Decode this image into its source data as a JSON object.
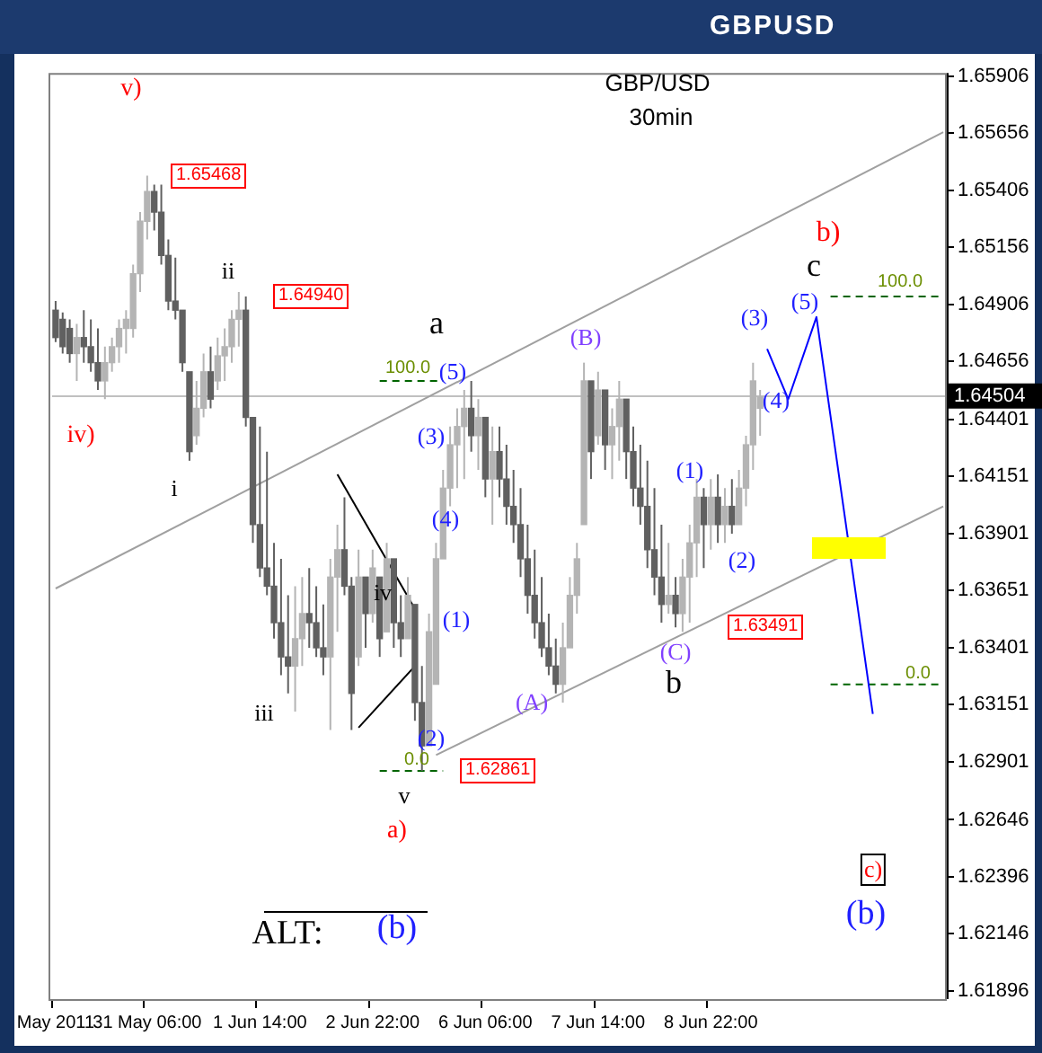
{
  "chart_data": {
    "type": "candlestick",
    "title": "GBPUSD",
    "subtitle": "GBP/USD",
    "colors": [
      "#606060",
      "#606060",
      "#606060",
      "#b4b4b4",
      "#606060",
      "#606060",
      "#606060",
      "#b4b4b4",
      "#b4b4b4",
      "#b4b4b4",
      "#b4b4b4",
      "#b4b4b4",
      "#b4b4b4",
      "#b4b4b4",
      "#606060",
      "#606060",
      "#606060",
      "#606060",
      "#606060",
      "#606060",
      "#b4b4b4",
      "#b4b4b4",
      "#606060",
      "#b4b4b4",
      "#b4b4b4",
      "#b4b4b4",
      "#b4b4b4",
      "#606060",
      "#606060",
      "#606060",
      "#606060",
      "#606060",
      "#606060",
      "#606060",
      "#b4b4b4",
      "#b4b4b4",
      "#606060",
      "#606060",
      "#606060",
      "#b4b4b4",
      "#b4b4b4",
      "#606060",
      "#606060",
      "#b4b4b4",
      "#606060",
      "#b4b4b4",
      "#606060",
      "#b4b4b4",
      "#606060",
      "#606060",
      "#b4b4b4",
      "#606060",
      "#606060",
      "#b4b4b4",
      "#b4b4b4",
      "#b4b4b4",
      "#b4b4b4",
      "#b4b4b4",
      "#b4b4b4",
      "#606060",
      "#b4b4b4",
      "#606060",
      "#b4b4b4",
      "#606060",
      "#606060",
      "#606060",
      "#606060",
      "#606060",
      "#606060",
      "#606060",
      "#606060",
      "#606060",
      "#b4b4b4",
      "#b4b4b4",
      "#b4b4b4",
      "#b4b4b4",
      "#606060",
      "#b4b4b4",
      "#606060",
      "#b4b4b4",
      "#b4b4b4",
      "#606060",
      "#606060",
      "#606060",
      "#606060",
      "#606060",
      "#606060",
      "#b4b4b4",
      "#606060",
      "#b4b4b4",
      "#b4b4b4",
      "#b4b4b4",
      "#606060",
      "#b4b4b4",
      "#606060",
      "#b4b4b4",
      "#606060",
      "#b4b4b4",
      "#b4b4b4",
      "#b4b4b4",
      "#b4b4b4",
      null,
      null,
      null,
      null,
      null,
      null,
      null,
      null,
      null,
      null,
      null,
      null,
      null,
      null,
      null,
      null,
      null,
      null,
      null,
      null,
      null,
      null,
      null,
      null,
      null,
      null
    ],
    "categories": [
      "May 2011",
      null,
      null,
      null,
      null,
      null,
      null,
      null,
      null,
      null,
      null,
      null,
      null,
      "31 May 06:00",
      null,
      null,
      null,
      null,
      null,
      null,
      null,
      null,
      null,
      null,
      null,
      null,
      null,
      null,
      null,
      "1 Jun 14:00",
      null,
      null,
      null,
      null,
      null,
      null,
      null,
      null,
      null,
      null,
      null,
      null,
      null,
      null,
      null,
      "2 Jun 22:00",
      null,
      null,
      null,
      null,
      null,
      null,
      null,
      null,
      null,
      null,
      null,
      null,
      null,
      null,
      null,
      "6 Jun 06:00",
      null,
      null,
      null,
      null,
      null,
      null,
      null,
      null,
      null,
      null,
      null,
      null,
      null,
      null,
      null,
      "7 Jun 14:00",
      null,
      null,
      null,
      null,
      null,
      null,
      null,
      null,
      null,
      null,
      null,
      null,
      null,
      null,
      null,
      "8 Jun 22:00",
      null,
      null,
      null,
      null,
      null,
      null,
      null,
      null,
      null,
      null,
      null,
      null,
      null,
      null,
      null,
      null,
      null,
      null,
      null,
      null,
      null,
      null,
      null,
      null,
      null,
      null,
      null,
      null,
      null,
      null,
      null,
      null,
      null
    ],
    "ohlc": [
      [
        1.6488,
        1.6492,
        1.6474,
        1.6476
      ],
      [
        1.6484,
        1.6487,
        1.6469,
        1.6472
      ],
      [
        1.648,
        1.6484,
        1.6465,
        1.6469
      ],
      [
        1.6469,
        1.6482,
        1.6457,
        1.6476
      ],
      [
        1.6476,
        1.6488,
        1.6465,
        1.6472
      ],
      [
        1.6472,
        1.6484,
        1.6461,
        1.6465
      ],
      [
        1.6465,
        1.648,
        1.6453,
        1.6457
      ],
      [
        1.6457,
        1.6472,
        1.6449,
        1.6465
      ],
      [
        1.6465,
        1.6476,
        1.6461,
        1.6472
      ],
      [
        1.6472,
        1.6484,
        1.6465,
        1.648
      ],
      [
        1.648,
        1.6488,
        1.6469,
        1.6484
      ],
      [
        1.648,
        1.6508,
        1.6476,
        1.6504
      ],
      [
        1.6504,
        1.6531,
        1.6496,
        1.6527
      ],
      [
        1.6527,
        1.6547,
        1.6519,
        1.654
      ],
      [
        1.654,
        1.6543,
        1.6523,
        1.6531
      ],
      [
        1.6531,
        1.6543,
        1.6508,
        1.6512
      ],
      [
        1.6512,
        1.6519,
        1.6488,
        1.6492
      ],
      [
        1.6492,
        1.6511,
        1.6484,
        1.6488
      ],
      [
        1.6488,
        1.6488,
        1.6461,
        1.6465
      ],
      [
        1.6461,
        1.6461,
        1.6422,
        1.6426
      ],
      [
        1.6433,
        1.6457,
        1.6429,
        1.6445
      ],
      [
        1.6445,
        1.6469,
        1.6441,
        1.6461
      ],
      [
        1.6461,
        1.6472,
        1.6445,
        1.6449
      ],
      [
        1.6457,
        1.6476,
        1.6453,
        1.6468
      ],
      [
        1.6468,
        1.648,
        1.6457,
        1.6472
      ],
      [
        1.6472,
        1.6488,
        1.6465,
        1.6484
      ],
      [
        1.6484,
        1.6496,
        1.6472,
        1.6488
      ],
      [
        1.6488,
        1.6494,
        1.6437,
        1.6441
      ],
      [
        1.6441,
        1.6441,
        1.6386,
        1.6394
      ],
      [
        1.6394,
        1.6437,
        1.6371,
        1.6375
      ],
      [
        1.6375,
        1.6426,
        1.6363,
        1.6367
      ],
      [
        1.6367,
        1.6386,
        1.6344,
        1.6351
      ],
      [
        1.6351,
        1.6379,
        1.6328,
        1.6336
      ],
      [
        1.6336,
        1.6363,
        1.632,
        1.6332
      ],
      [
        1.6332,
        1.6367,
        1.6312,
        1.6344
      ],
      [
        1.6344,
        1.6371,
        1.6332,
        1.6355
      ],
      [
        1.6355,
        1.6375,
        1.634,
        1.6351
      ],
      [
        1.6351,
        1.6367,
        1.6336,
        1.634
      ],
      [
        1.634,
        1.6359,
        1.6328,
        1.6336
      ],
      [
        1.6336,
        1.6379,
        1.6304,
        1.6371
      ],
      [
        1.6371,
        1.6394,
        1.6347,
        1.6383
      ],
      [
        1.6383,
        1.6406,
        1.6363,
        1.6367
      ],
      [
        1.6367,
        1.6371,
        1.6304,
        1.632
      ],
      [
        1.6336,
        1.6383,
        1.6332,
        1.6371
      ],
      [
        1.6371,
        1.6371,
        1.634,
        1.6355
      ],
      [
        1.6355,
        1.6383,
        1.6351,
        1.6375
      ],
      [
        1.6371,
        1.6371,
        1.6336,
        1.6344
      ],
      [
        1.6347,
        1.6386,
        1.6347,
        1.6379
      ],
      [
        1.6379,
        1.6379,
        1.634,
        1.6351
      ],
      [
        1.6351,
        1.6363,
        1.6336,
        1.6344
      ],
      [
        1.6344,
        1.6371,
        1.6344,
        1.6363
      ],
      [
        1.6359,
        1.6359,
        1.6308,
        1.6316
      ],
      [
        1.6316,
        1.6332,
        1.6286,
        1.6297
      ],
      [
        1.6297,
        1.6355,
        1.6297,
        1.6347
      ],
      [
        1.6324,
        1.6386,
        1.6324,
        1.6379
      ],
      [
        1.6379,
        1.6418,
        1.6379,
        1.641
      ],
      [
        1.641,
        1.6437,
        1.6402,
        1.6429
      ],
      [
        1.6429,
        1.6445,
        1.641,
        1.6437
      ],
      [
        1.6437,
        1.6453,
        1.6414,
        1.6445
      ],
      [
        1.6445,
        1.6457,
        1.6426,
        1.6433
      ],
      [
        1.6433,
        1.6449,
        1.6418,
        1.6441
      ],
      [
        1.6441,
        1.6441,
        1.6406,
        1.6414
      ],
      [
        1.6414,
        1.6437,
        1.6394,
        1.6426
      ],
      [
        1.6426,
        1.6437,
        1.6406,
        1.6414
      ],
      [
        1.6414,
        1.6429,
        1.6394,
        1.6402
      ],
      [
        1.6402,
        1.6418,
        1.6386,
        1.6394
      ],
      [
        1.6394,
        1.641,
        1.6371,
        1.6379
      ],
      [
        1.6379,
        1.6394,
        1.6355,
        1.6363
      ],
      [
        1.6363,
        1.6383,
        1.6344,
        1.6351
      ],
      [
        1.6351,
        1.6371,
        1.6336,
        1.634
      ],
      [
        1.634,
        1.6355,
        1.6328,
        1.6332
      ],
      [
        1.6332,
        1.6344,
        1.632,
        1.6324
      ],
      [
        1.6324,
        1.6351,
        1.6316,
        1.634
      ],
      [
        1.634,
        1.6371,
        1.634,
        1.6363
      ],
      [
        1.6363,
        1.6386,
        1.6355,
        1.6379
      ],
      [
        1.6394,
        1.6465,
        1.6394,
        1.6457
      ],
      [
        1.6457,
        1.6457,
        1.6414,
        1.6426
      ],
      [
        1.6433,
        1.6461,
        1.6429,
        1.6453
      ],
      [
        1.6453,
        1.6453,
        1.6418,
        1.6429
      ],
      [
        1.6429,
        1.6445,
        1.6414,
        1.6437
      ],
      [
        1.6437,
        1.6457,
        1.6422,
        1.6449
      ],
      [
        1.6449,
        1.6449,
        1.6414,
        1.6426
      ],
      [
        1.6426,
        1.6437,
        1.6402,
        1.641
      ],
      [
        1.641,
        1.6429,
        1.6394,
        1.6402
      ],
      [
        1.6402,
        1.6422,
        1.6375,
        1.6383
      ],
      [
        1.6383,
        1.641,
        1.6363,
        1.6371
      ],
      [
        1.6371,
        1.6394,
        1.6351,
        1.6359
      ],
      [
        1.6359,
        1.6386,
        1.6355,
        1.6363
      ],
      [
        1.6363,
        1.6371,
        1.6349,
        1.6355
      ],
      [
        1.6355,
        1.6379,
        1.6347,
        1.6371
      ],
      [
        1.6371,
        1.6394,
        1.6351,
        1.6386
      ],
      [
        1.6386,
        1.6414,
        1.6371,
        1.6406
      ],
      [
        1.6406,
        1.641,
        1.6375,
        1.6394
      ],
      [
        1.6394,
        1.6414,
        1.6383,
        1.6406
      ],
      [
        1.6406,
        1.6416,
        1.6386,
        1.6394
      ],
      [
        1.6394,
        1.641,
        1.6386,
        1.6402
      ],
      [
        1.6402,
        1.6414,
        1.639,
        1.6394
      ],
      [
        1.6394,
        1.6418,
        1.6394,
        1.641
      ],
      [
        1.641,
        1.6433,
        1.6402,
        1.6429
      ],
      [
        1.6429,
        1.6465,
        1.6418,
        1.6457
      ],
      [
        1.6445,
        1.6453,
        1.6433,
        1.645
      ],
      null,
      null,
      null,
      null,
      null,
      null,
      null,
      null,
      null,
      null,
      null,
      null,
      null,
      null,
      null,
      null,
      null,
      null,
      null,
      null,
      null,
      null,
      null,
      null,
      null,
      null
    ],
    "series": [
      {
        "type": "line",
        "color": "#a0a0a0",
        "values": [
          1.6366,
          null,
          null,
          null,
          null,
          null,
          null,
          null,
          null,
          null,
          null,
          null,
          null,
          null,
          null,
          null,
          null,
          null,
          null,
          null,
          null,
          null,
          null,
          null,
          null,
          null,
          null,
          null,
          null,
          null,
          null,
          null,
          null,
          null,
          null,
          null,
          null,
          null,
          null,
          null,
          null,
          null,
          null,
          null,
          null,
          null,
          null,
          null,
          null,
          null,
          null,
          null,
          null,
          null,
          null,
          null,
          null,
          null,
          null,
          null,
          null,
          null,
          null,
          null,
          null,
          null,
          null,
          null,
          null,
          null,
          null,
          null,
          null,
          null,
          null,
          null,
          null,
          null,
          null,
          null,
          null,
          null,
          null,
          null,
          null,
          null,
          null,
          null,
          null,
          null,
          null,
          null,
          null,
          null,
          null,
          null,
          null,
          null,
          null,
          null,
          null,
          null,
          null,
          null,
          null,
          null,
          null,
          null,
          null,
          null,
          null,
          null,
          null,
          null,
          null,
          null,
          null,
          null,
          null,
          null,
          null,
          null,
          null,
          null,
          null,
          null,
          1.6566
        ]
      },
      {
        "type": "line",
        "color": "#a0a0a0",
        "values": [
          null,
          null,
          null,
          null,
          null,
          null,
          null,
          null,
          null,
          null,
          null,
          null,
          null,
          null,
          null,
          null,
          null,
          null,
          null,
          null,
          null,
          null,
          null,
          null,
          null,
          null,
          null,
          null,
          null,
          null,
          null,
          null,
          null,
          null,
          null,
          null,
          null,
          null,
          null,
          null,
          null,
          null,
          null,
          null,
          null,
          null,
          null,
          null,
          null,
          null,
          null,
          null,
          null,
          null,
          1.6293,
          null,
          null,
          null,
          null,
          null,
          null,
          null,
          null,
          null,
          null,
          null,
          null,
          null,
          null,
          null,
          null,
          null,
          null,
          null,
          null,
          null,
          null,
          null,
          null,
          null,
          null,
          null,
          null,
          null,
          null,
          null,
          null,
          null,
          null,
          null,
          null,
          null,
          null,
          null,
          null,
          null,
          null,
          null,
          null,
          null,
          null,
          null,
          null,
          null,
          null,
          null,
          null,
          null,
          null,
          null,
          null,
          null,
          null,
          null,
          null,
          null,
          null,
          null,
          null,
          null,
          null,
          null,
          null,
          null,
          null,
          null,
          1.6402
        ]
      },
      {
        "type": "line",
        "color": "#0000ff",
        "values": [
          null,
          null,
          null,
          null,
          null,
          null,
          null,
          null,
          null,
          null,
          null,
          null,
          null,
          null,
          null,
          null,
          null,
          null,
          null,
          null,
          null,
          null,
          null,
          null,
          null,
          null,
          null,
          null,
          null,
          null,
          null,
          null,
          null,
          null,
          null,
          null,
          null,
          null,
          null,
          null,
          null,
          null,
          null,
          null,
          null,
          null,
          null,
          null,
          null,
          null,
          null,
          null,
          null,
          null,
          null,
          null,
          null,
          null,
          null,
          null,
          null,
          null,
          null,
          null,
          null,
          null,
          null,
          null,
          null,
          null,
          null,
          null,
          null,
          null,
          null,
          null,
          null,
          null,
          null,
          null,
          null,
          null,
          null,
          null,
          null,
          null,
          null,
          null,
          null,
          null,
          null,
          null,
          null,
          null,
          null,
          null,
          null,
          null,
          null,
          null,
          null,
          1.6471,
          null,
          null,
          1.6449,
          null,
          null,
          null,
          1.6485,
          null,
          null,
          null,
          null,
          null,
          null,
          null,
          1.6311,
          null,
          null,
          null,
          null,
          null,
          null,
          null,
          null,
          null,
          null
        ]
      },
      {
        "type": "line",
        "color": "#000000",
        "values": [
          null,
          null,
          null,
          null,
          null,
          null,
          null,
          null,
          null,
          null,
          null,
          null,
          null,
          null,
          null,
          null,
          null,
          null,
          null,
          null,
          null,
          null,
          null,
          null,
          null,
          null,
          null,
          null,
          null,
          null,
          null,
          null,
          null,
          null,
          null,
          null,
          null,
          null,
          null,
          null,
          1.6416,
          null,
          null,
          null,
          null,
          null,
          null,
          null,
          null,
          null,
          null,
          1.6357,
          null,
          null,
          null,
          null,
          null,
          null,
          null,
          null,
          null,
          null,
          null,
          null,
          null,
          null,
          null,
          null,
          null,
          null,
          null,
          null,
          null,
          null,
          null,
          null,
          null,
          null,
          null,
          null,
          null,
          null,
          null,
          null,
          null,
          null,
          null,
          null,
          null,
          null,
          null,
          null,
          null,
          null,
          null,
          null,
          null,
          null,
          null,
          null,
          null,
          null,
          null,
          null,
          null,
          null,
          null,
          null,
          null,
          null,
          null,
          null,
          null,
          null,
          null,
          null,
          null,
          null,
          null,
          null,
          null,
          null,
          null,
          null,
          null,
          null,
          null
        ]
      },
      {
        "type": "line",
        "color": "#000000",
        "values": [
          null,
          null,
          null,
          null,
          null,
          null,
          null,
          null,
          null,
          null,
          null,
          null,
          null,
          null,
          null,
          null,
          null,
          null,
          null,
          null,
          null,
          null,
          null,
          null,
          null,
          null,
          null,
          null,
          null,
          null,
          null,
          null,
          null,
          null,
          null,
          null,
          null,
          null,
          null,
          null,
          null,
          null,
          null,
          1.6305,
          null,
          null,
          null,
          null,
          null,
          null,
          null,
          1.6332,
          null,
          null,
          null,
          null,
          null,
          null,
          null,
          null,
          null,
          null,
          null,
          null,
          null,
          null,
          null,
          null,
          null,
          null,
          null,
          null,
          null,
          null,
          null,
          null,
          null,
          null,
          null,
          null,
          null,
          null,
          null,
          null,
          null,
          null,
          null,
          null,
          null,
          null,
          null,
          null,
          null,
          null,
          null,
          null,
          null,
          null,
          null,
          null,
          null,
          null,
          null,
          null,
          null,
          null,
          null,
          null,
          null,
          null,
          null,
          null,
          null,
          null,
          null,
          null,
          null,
          null,
          null,
          null,
          null,
          null,
          null,
          null,
          null,
          null,
          null
        ]
      },
      {
        "type": "line",
        "color": "#006400",
        "line_style": "dashed",
        "values": [
          null,
          null,
          null,
          null,
          null,
          null,
          null,
          null,
          null,
          null,
          null,
          null,
          null,
          null,
          null,
          null,
          null,
          null,
          null,
          null,
          null,
          null,
          null,
          null,
          null,
          null,
          null,
          null,
          null,
          null,
          null,
          null,
          null,
          null,
          null,
          null,
          null,
          null,
          null,
          null,
          null,
          null,
          null,
          null,
          null,
          null,
          1.6457,
          null,
          null,
          null,
          null,
          null,
          null,
          null,
          null,
          1.6457,
          null,
          null,
          null,
          null,
          null,
          null,
          null,
          null,
          null,
          null,
          null,
          null,
          null,
          null,
          null,
          null,
          null,
          null,
          null,
          null,
          null,
          null,
          null,
          null,
          null,
          null,
          null,
          null,
          null,
          null,
          null,
          null,
          null,
          null,
          null,
          null,
          null,
          null,
          null,
          null,
          null,
          null,
          null,
          null,
          null,
          null,
          null,
          null,
          null,
          null,
          null,
          null,
          null,
          null,
          null,
          null,
          null,
          null,
          null,
          null,
          null,
          null,
          null,
          null,
          null,
          null,
          null,
          null,
          null,
          null,
          null
        ]
      },
      {
        "type": "line",
        "color": "#006400",
        "line_style": "dashed",
        "values": [
          null,
          null,
          null,
          null,
          null,
          null,
          null,
          null,
          null,
          null,
          null,
          null,
          null,
          null,
          null,
          null,
          null,
          null,
          null,
          null,
          null,
          null,
          null,
          null,
          null,
          null,
          null,
          null,
          null,
          null,
          null,
          null,
          null,
          null,
          null,
          null,
          null,
          null,
          null,
          null,
          null,
          null,
          null,
          null,
          null,
          null,
          1.6286,
          null,
          null,
          null,
          null,
          null,
          null,
          null,
          null,
          1.6286,
          null,
          null,
          null,
          null,
          null,
          null,
          null,
          null,
          null,
          null,
          null,
          null,
          null,
          null,
          null,
          null,
          null,
          null,
          null,
          null,
          null,
          null,
          null,
          null,
          null,
          null,
          null,
          null,
          null,
          null,
          null,
          null,
          null,
          null,
          null,
          null,
          null,
          null,
          null,
          null,
          null,
          null,
          null,
          null,
          null,
          null,
          null,
          null,
          null,
          null,
          null,
          null,
          null,
          null,
          null,
          null,
          null,
          null,
          null,
          null,
          null,
          null,
          null,
          null,
          null,
          null,
          null,
          null,
          null,
          null,
          null
        ]
      },
      {
        "type": "line",
        "color": "#006400",
        "line_style": "dashed",
        "values": [
          null,
          null,
          null,
          null,
          null,
          null,
          null,
          null,
          null,
          null,
          null,
          null,
          null,
          null,
          null,
          null,
          null,
          null,
          null,
          null,
          null,
          null,
          null,
          null,
          null,
          null,
          null,
          null,
          null,
          null,
          null,
          null,
          null,
          null,
          null,
          null,
          null,
          null,
          null,
          null,
          null,
          null,
          null,
          null,
          null,
          null,
          null,
          null,
          null,
          null,
          null,
          null,
          null,
          null,
          null,
          null,
          null,
          null,
          null,
          null,
          null,
          null,
          null,
          null,
          null,
          null,
          null,
          null,
          null,
          null,
          null,
          null,
          null,
          null,
          null,
          null,
          null,
          null,
          null,
          null,
          null,
          null,
          null,
          null,
          null,
          null,
          null,
          null,
          null,
          null,
          null,
          null,
          null,
          null,
          null,
          null,
          null,
          null,
          null,
          null,
          null,
          null,
          null,
          null,
          null,
          null,
          null,
          null,
          null,
          null,
          1.6494,
          null,
          null,
          null,
          null,
          null,
          null,
          null,
          null,
          null,
          null,
          null,
          null,
          null,
          null,
          null,
          1.6494
        ]
      },
      {
        "type": "line",
        "color": "#006400",
        "line_style": "dashed",
        "values": [
          null,
          null,
          null,
          null,
          null,
          null,
          null,
          null,
          null,
          null,
          null,
          null,
          null,
          null,
          null,
          null,
          null,
          null,
          null,
          null,
          null,
          null,
          null,
          null,
          null,
          null,
          null,
          null,
          null,
          null,
          null,
          null,
          null,
          null,
          null,
          null,
          null,
          null,
          null,
          null,
          null,
          null,
          null,
          null,
          null,
          null,
          null,
          null,
          null,
          null,
          null,
          null,
          null,
          null,
          null,
          null,
          null,
          null,
          null,
          null,
          null,
          null,
          null,
          null,
          null,
          null,
          null,
          null,
          null,
          null,
          null,
          null,
          null,
          null,
          null,
          null,
          null,
          null,
          null,
          null,
          null,
          null,
          null,
          null,
          null,
          null,
          null,
          null,
          null,
          null,
          null,
          null,
          null,
          null,
          null,
          null,
          null,
          null,
          null,
          null,
          null,
          null,
          null,
          null,
          null,
          null,
          null,
          null,
          null,
          null,
          1.6324,
          null,
          null,
          null,
          null,
          null,
          null,
          null,
          null,
          null,
          null,
          null,
          null,
          null,
          null,
          null,
          1.6324
        ]
      }
    ],
    "ylim": [
      1.6186,
      1.6592
    ],
    "yticks": [
      1.61896,
      1.62146,
      1.62396,
      1.62646,
      1.62901,
      1.63151,
      1.63401,
      1.63651,
      1.63901,
      1.64151,
      1.64401,
      1.64656,
      1.64906,
      1.65156,
      1.65406,
      1.65656,
      1.65906
    ],
    "ref_lines": [
      {
        "axis": "y",
        "value": 1.64504,
        "label": "1.64504",
        "color": "#c0c0c0"
      }
    ],
    "annotations": [
      "v)",
      {
        "text": "1.65468",
        "y": 1.65468
      },
      "ii",
      {
        "text": "1.64940",
        "y": 1.6494
      },
      "iv)",
      "i",
      "iii",
      {
        "text": "iv",
        "y": 1.6364
      },
      "v",
      "a)",
      {
        "text": "1.62861",
        "y": 1.62861
      },
      "a",
      "100.0",
      "0.0",
      "(5)",
      "(3)",
      "(4)",
      "(1)",
      "(2)",
      "(A)",
      "(B)",
      "(C)",
      "b",
      {
        "text": "1.63491",
        "y": 1.63491
      },
      "(1)",
      "(2)",
      "(3)",
      "(4)",
      "(5)",
      "c",
      "b)",
      "100.0",
      "0.0",
      "c)",
      "(b)",
      "ALT:",
      "(b)",
      "30min"
    ]
  }
}
